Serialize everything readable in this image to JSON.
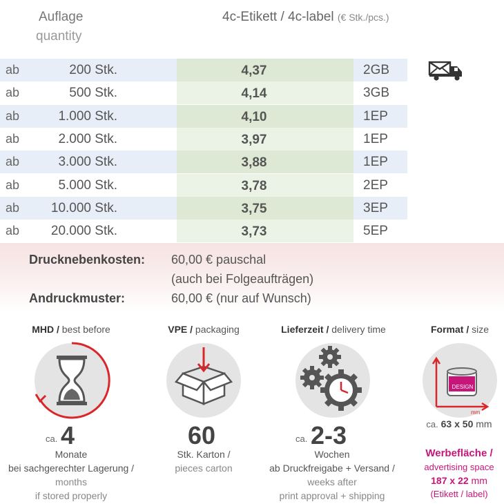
{
  "header": {
    "col_qty_de": "Auflage",
    "col_qty_en": "quantity",
    "col_product_main": "4c-Etikett / 4c-label",
    "col_product_unit": "(€ Stk./pcs.)"
  },
  "prices": [
    {
      "from": "ab",
      "qty": "200 Stk.",
      "price": "4,37",
      "shipping": "2GB"
    },
    {
      "from": "ab",
      "qty": "500 Stk.",
      "price": "4,14",
      "shipping": "3GB"
    },
    {
      "from": "ab",
      "qty": "1.000 Stk.",
      "price": "4,10",
      "shipping": "1EP"
    },
    {
      "from": "ab",
      "qty": "2.000 Stk.",
      "price": "3,97",
      "shipping": "1EP"
    },
    {
      "from": "ab",
      "qty": "3.000 Stk.",
      "price": "3,88",
      "shipping": "1EP"
    },
    {
      "from": "ab",
      "qty": "5.000 Stk.",
      "price": "3,78",
      "shipping": "2EP"
    },
    {
      "from": "ab",
      "qty": "10.000 Stk.",
      "price": "3,75",
      "shipping": "3EP"
    },
    {
      "from": "ab",
      "qty": "20.000 Stk.",
      "price": "3,73",
      "shipping": "5EP"
    }
  ],
  "costs": {
    "print_label": "Drucknebenkosten:",
    "print_value": "60,00 € pauschal",
    "print_note": "(auch bei Folgeaufträgen)",
    "proof_label": "Andruckmuster:",
    "proof_value": "60,00 € (nur auf Wunsch)"
  },
  "info": {
    "mhd": {
      "title_de": "MHD /",
      "title_en": "best before",
      "prefix": "ca.",
      "value": "4",
      "line1": "Monate",
      "line2": "bei sachgerechter Lagerung /",
      "line3": "months",
      "line4": "if stored properly"
    },
    "vpe": {
      "title_de": "VPE /",
      "title_en": "packaging",
      "value": "60",
      "line1": "Stk. Karton /",
      "line2": "pieces carton"
    },
    "delivery": {
      "title_de": "Lieferzeit /",
      "title_en": "delivery time",
      "prefix": "ca.",
      "value": "2-3",
      "line1": "Wochen",
      "line2": "ab Druckfreigabe + Versand /",
      "line3": "weeks after",
      "line4": "print approval + shipping"
    },
    "format": {
      "title_de": "Format /",
      "title_en": "size",
      "icon_label": "DESIGN",
      "icon_unit": "mm",
      "size_prefix": "ca.",
      "size_value": "63 x 50",
      "size_unit": "mm",
      "ad_title": "Werbefläche /",
      "ad_sub": "advertising space",
      "ad_size": "187 x 22",
      "ad_unit": "mm",
      "ad_note": "(Etikett / label)"
    }
  },
  "colors": {
    "accent": "#c8157a",
    "red": "#d9262b"
  }
}
